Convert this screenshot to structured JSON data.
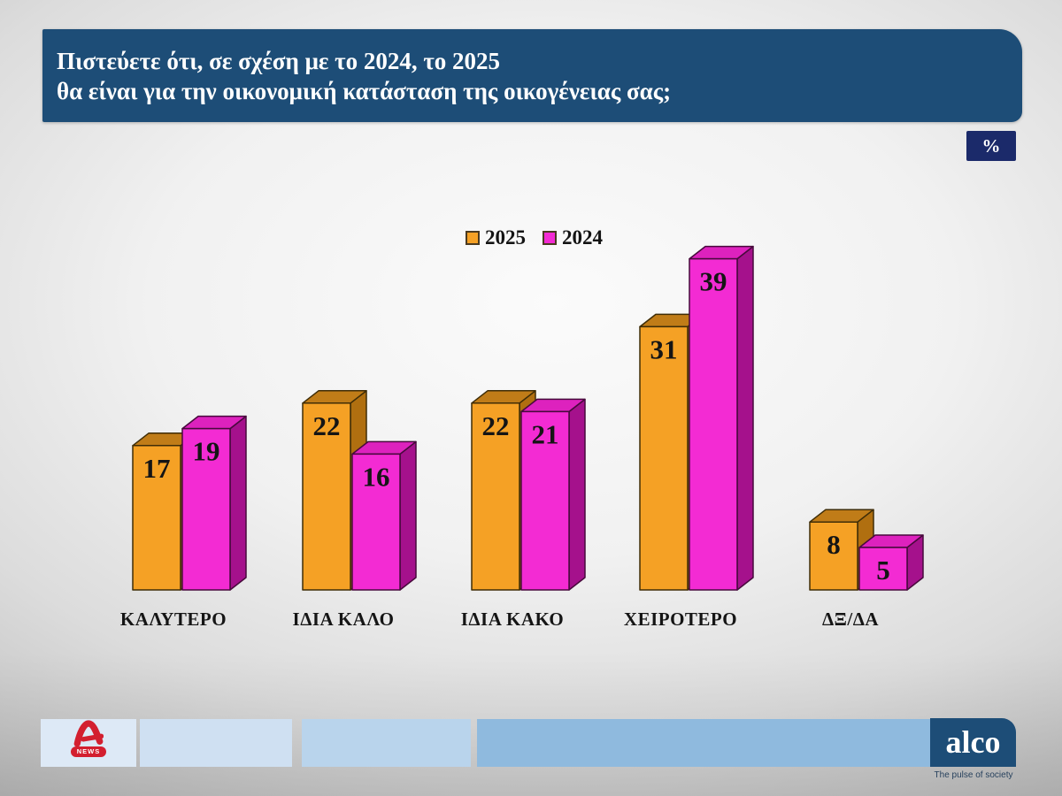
{
  "header": {
    "title_line1": "Πιστεύετε ότι, σε σχέση με το 2024, το 2025",
    "title_line2": "θα είναι για την οικονομική κατάσταση της οικογένειας σας;",
    "badge": "%"
  },
  "chart_data": {
    "type": "bar",
    "style": "3d-grouped-columns",
    "title": "",
    "xlabel": "",
    "ylabel": "",
    "unit": "percent",
    "grid": false,
    "legend_position": "top-center",
    "value_labels": "inside-top",
    "ylim": [
      0,
      42
    ],
    "categories": [
      "ΚΑΛΥΤΕΡΟ",
      "ΙΔΙΑ ΚΑΛΟ",
      "ΙΔΙΑ ΚΑΚΟ",
      "ΧΕΙΡΟΤΕΡΟ",
      "ΔΞ/ΔΑ"
    ],
    "series": [
      {
        "name": "2025",
        "values": [
          17,
          22,
          22,
          31,
          8
        ],
        "color": "#F5A125",
        "color_top": "#C07C18",
        "color_side": "#B06F10",
        "outline": "#3F2D07"
      },
      {
        "name": "2024",
        "values": [
          19,
          16,
          21,
          39,
          5
        ],
        "color": "#F32BD3",
        "color_top": "#DD22BE",
        "color_side": "#A5118C",
        "outline": "#470A3C"
      }
    ]
  },
  "footer": {
    "segments": [
      {
        "color": "#DDE9F6"
      },
      {
        "color": "#CFE0F2"
      },
      {
        "color": "#B9D4EC"
      },
      {
        "color": "#8FBADE"
      }
    ],
    "alpha_logo": {
      "news_label": "NEWS",
      "color": "#D31F2F"
    },
    "alco": {
      "wordmark": "alco",
      "tagline": "The pulse of society"
    }
  },
  "colors": {
    "header_bg": "#1D4D77",
    "badge_bg": "#1B2A6A",
    "alco_bg": "#1D4D77"
  }
}
